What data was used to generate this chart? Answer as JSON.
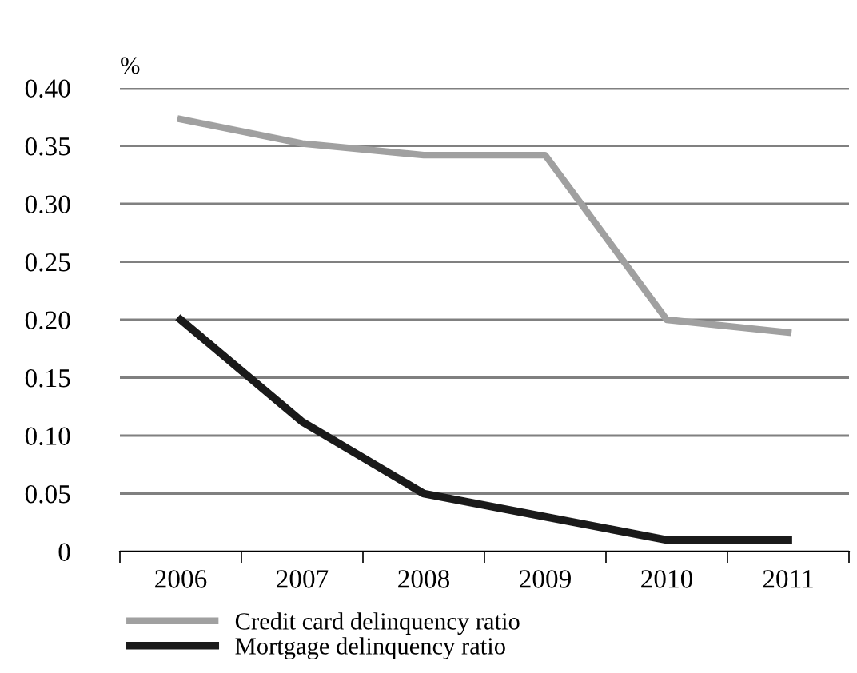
{
  "chart_data": {
    "type": "line",
    "ylabel": "%",
    "categories": [
      "2006",
      "2007",
      "2008",
      "2009",
      "2010",
      "2011"
    ],
    "series": [
      {
        "name": "Credit card delinquency ratio",
        "color": "#a0a0a0",
        "values": [
          0.373,
          0.352,
          0.342,
          0.342,
          0.2,
          0.189
        ]
      },
      {
        "name": "Mortgage delinquency ratio",
        "color": "#1a1a1a",
        "values": [
          0.2,
          0.112,
          0.05,
          0.03,
          0.01,
          0.01
        ]
      }
    ],
    "ylim": [
      0,
      0.4
    ],
    "yticks": [
      0,
      0.05,
      {
        "value": 0.1,
        "label": "0.10"
      },
      0.15,
      {
        "value": 0.2,
        "label": "0.20"
      },
      0.25,
      {
        "value": 0.3,
        "label": "0.30"
      },
      0.35,
      {
        "value": 0.4,
        "label": "0.40"
      }
    ],
    "grid": "y",
    "legend": "bottom",
    "marker": "none",
    "line_style": "solid"
  }
}
